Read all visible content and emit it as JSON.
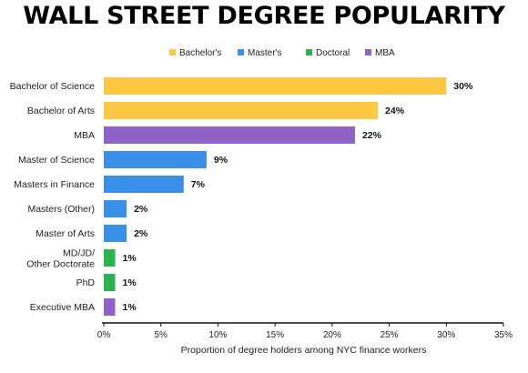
{
  "chart_data": {
    "type": "bar",
    "orientation": "horizontal",
    "title": "WALL STREET DEGREE POPULARITY",
    "xlabel": "Proportion of degree holders among NYC finance workers",
    "ylabel": "",
    "xlim": [
      0,
      35
    ],
    "xticks": [
      "0%",
      "5%",
      "10%",
      "15%",
      "20%",
      "25%",
      "30%",
      "35%"
    ],
    "grid": false,
    "legend_position": "top-center",
    "legend": [
      {
        "name": "Bachelor's",
        "color": "#fcc844"
      },
      {
        "name": "Master's",
        "color": "#3a8fe6"
      },
      {
        "name": "Doctoral",
        "color": "#2bb34f"
      },
      {
        "name": "MBA",
        "color": "#8f62c7"
      }
    ],
    "categories": [
      "Bachelor of Science",
      "Bachelor of Arts",
      "MBA",
      "Master of Science",
      "Masters in Finance",
      "Masters (Other)",
      "Master of Arts",
      "MD/JD/\nOther Doctorate",
      "PhD",
      "Executive MBA"
    ],
    "values": [
      30,
      24,
      22,
      9,
      7,
      2,
      2,
      1,
      1,
      1
    ],
    "value_labels": [
      "30%",
      "24%",
      "22%",
      "9%",
      "7%",
      "2%",
      "2%",
      "1%",
      "1%",
      "1%"
    ],
    "groups": [
      "Bachelor's",
      "Bachelor's",
      "MBA",
      "Master's",
      "Master's",
      "Master's",
      "Master's",
      "Doctoral",
      "Doctoral",
      "MBA"
    ]
  }
}
